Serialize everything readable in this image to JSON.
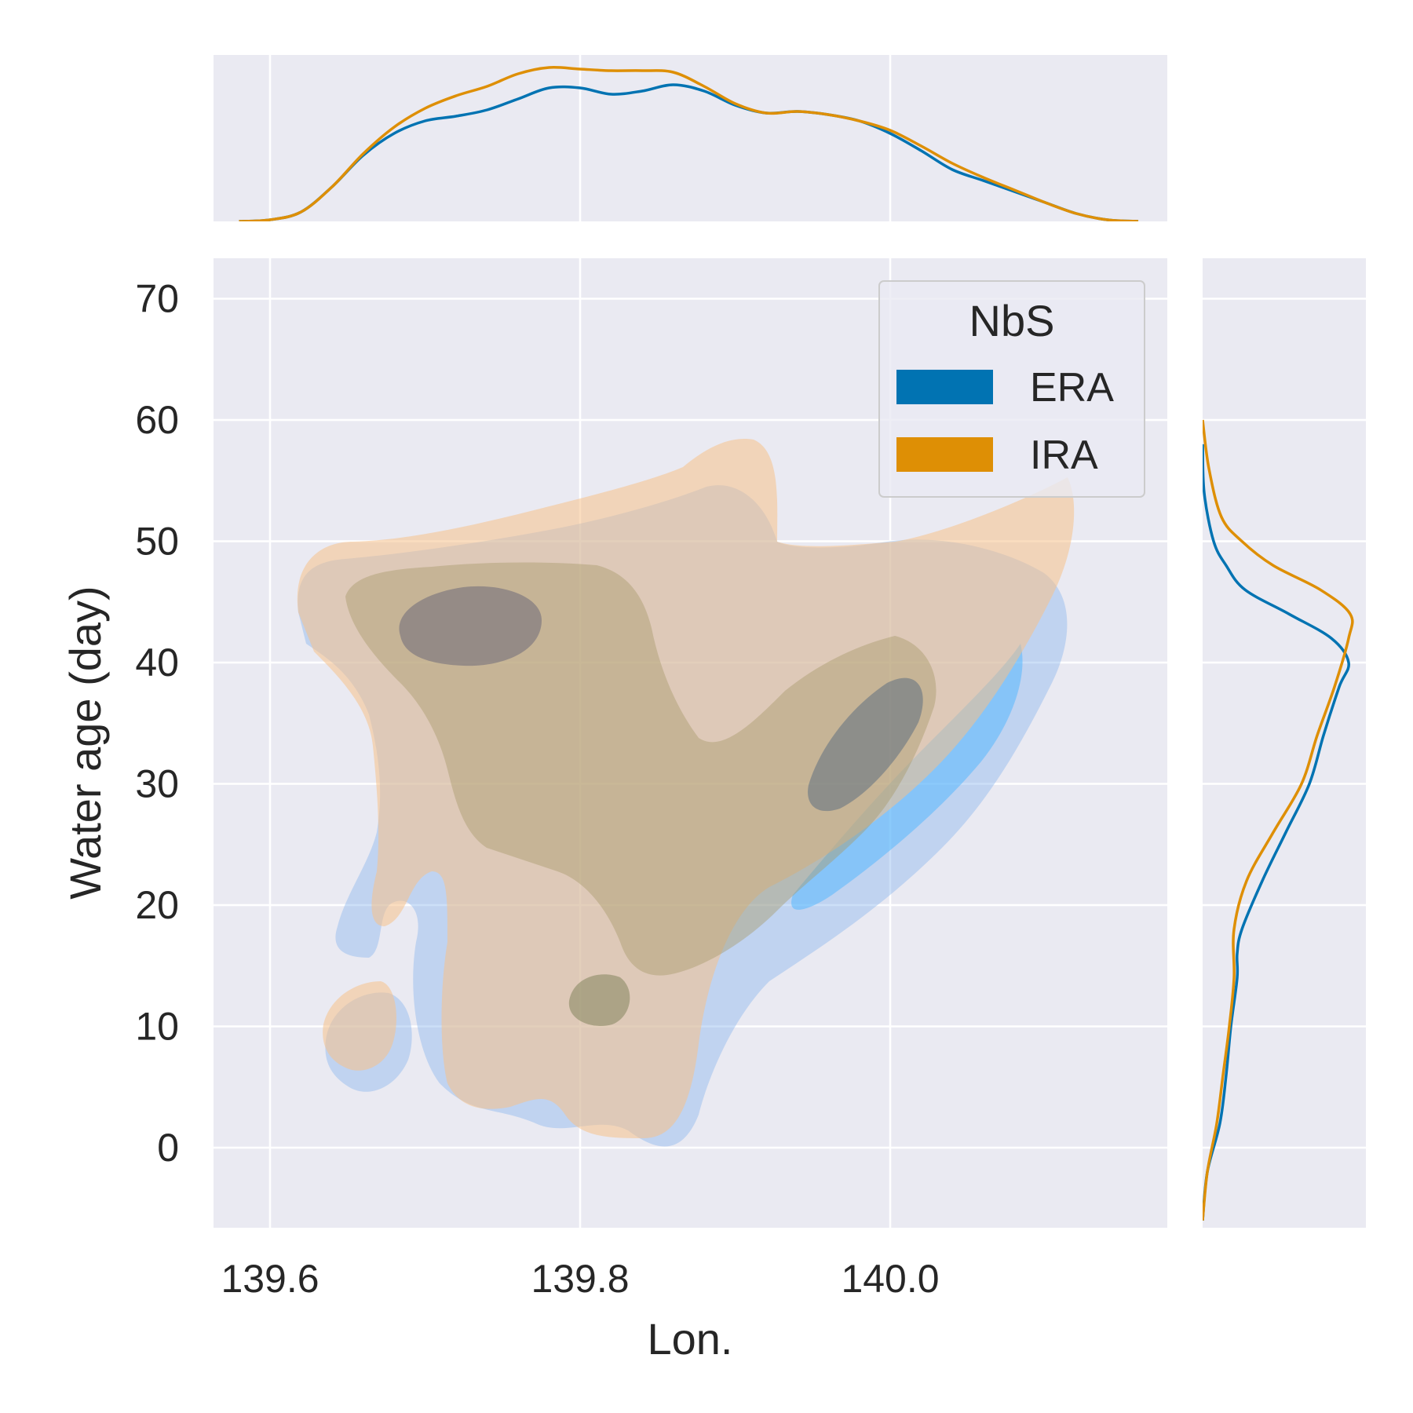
{
  "chart_data": {
    "type": "kde_joint",
    "xlabel": "Lon.",
    "ylabel": "Water age (day)",
    "x_ticks": [
      139.6,
      139.8,
      140.0
    ],
    "x_tick_labels": [
      "139.6",
      "139.8",
      "140.0"
    ],
    "y_ticks": [
      0,
      10,
      20,
      30,
      40,
      50,
      60,
      70
    ],
    "y_tick_labels": [
      "0",
      "10",
      "20",
      "30",
      "40",
      "50",
      "60",
      "70"
    ],
    "xlim": [
      139.563,
      140.177
    ],
    "ylim": [
      -6.6,
      73.4
    ],
    "legend": {
      "title": "NbS",
      "placement": "upper right",
      "entries": [
        {
          "label": "ERA",
          "color": "#0173b2"
        },
        {
          "label": "IRA",
          "color": "#de8f05"
        }
      ]
    },
    "grid": true,
    "colors": {
      "ERA": "#0173b2",
      "IRA": "#de8f05",
      "ERA_fill_light": "#8fb8ee",
      "ERA_fill_core": "#55b8ff",
      "IRA_fill_light": "#f5c18a",
      "panel_bg": "#eaeaf2",
      "grid": "#ffffff"
    },
    "series": [
      {
        "name": "ERA",
        "kde_x_marginal": [
          [
            139.58,
            0.0
          ],
          [
            139.6,
            0.01
          ],
          [
            139.62,
            0.06
          ],
          [
            139.64,
            0.22
          ],
          [
            139.66,
            0.42
          ],
          [
            139.68,
            0.56
          ],
          [
            139.7,
            0.64
          ],
          [
            139.72,
            0.67
          ],
          [
            139.74,
            0.71
          ],
          [
            139.76,
            0.78
          ],
          [
            139.78,
            0.85
          ],
          [
            139.8,
            0.85
          ],
          [
            139.82,
            0.81
          ],
          [
            139.84,
            0.83
          ],
          [
            139.86,
            0.87
          ],
          [
            139.88,
            0.83
          ],
          [
            139.9,
            0.74
          ],
          [
            139.92,
            0.69
          ],
          [
            139.94,
            0.7
          ],
          [
            139.96,
            0.68
          ],
          [
            139.98,
            0.64
          ],
          [
            140.0,
            0.56
          ],
          [
            140.02,
            0.45
          ],
          [
            140.04,
            0.33
          ],
          [
            140.06,
            0.26
          ],
          [
            140.08,
            0.19
          ],
          [
            140.1,
            0.12
          ],
          [
            140.12,
            0.05
          ],
          [
            140.14,
            0.01
          ],
          [
            140.16,
            0.0
          ]
        ],
        "kde_y_marginal": [
          [
            -6,
            0.0
          ],
          [
            -2,
            0.03
          ],
          [
            2,
            0.11
          ],
          [
            6,
            0.15
          ],
          [
            10,
            0.18
          ],
          [
            14,
            0.22
          ],
          [
            16,
            0.22
          ],
          [
            18,
            0.25
          ],
          [
            22,
            0.38
          ],
          [
            26,
            0.53
          ],
          [
            30,
            0.68
          ],
          [
            34,
            0.77
          ],
          [
            38,
            0.87
          ],
          [
            40,
            0.93
          ],
          [
            42,
            0.82
          ],
          [
            44,
            0.55
          ],
          [
            46,
            0.27
          ],
          [
            48,
            0.15
          ],
          [
            50,
            0.07
          ],
          [
            54,
            0.01
          ],
          [
            58,
            0.0
          ]
        ]
      },
      {
        "name": "IRA",
        "kde_x_marginal": [
          [
            139.58,
            0.0
          ],
          [
            139.6,
            0.01
          ],
          [
            139.62,
            0.06
          ],
          [
            139.64,
            0.22
          ],
          [
            139.66,
            0.43
          ],
          [
            139.68,
            0.6
          ],
          [
            139.7,
            0.72
          ],
          [
            139.72,
            0.8
          ],
          [
            139.74,
            0.86
          ],
          [
            139.76,
            0.94
          ],
          [
            139.78,
            0.98
          ],
          [
            139.8,
            0.97
          ],
          [
            139.82,
            0.96
          ],
          [
            139.84,
            0.96
          ],
          [
            139.86,
            0.95
          ],
          [
            139.88,
            0.86
          ],
          [
            139.9,
            0.75
          ],
          [
            139.92,
            0.69
          ],
          [
            139.94,
            0.7
          ],
          [
            139.96,
            0.68
          ],
          [
            139.98,
            0.64
          ],
          [
            140.0,
            0.58
          ],
          [
            140.02,
            0.48
          ],
          [
            140.04,
            0.37
          ],
          [
            140.06,
            0.28
          ],
          [
            140.08,
            0.2
          ],
          [
            140.1,
            0.12
          ],
          [
            140.12,
            0.05
          ],
          [
            140.14,
            0.01
          ],
          [
            140.16,
            0.0
          ]
        ],
        "kde_y_marginal": [
          [
            -6,
            0.0
          ],
          [
            -2,
            0.03
          ],
          [
            2,
            0.09
          ],
          [
            6,
            0.13
          ],
          [
            10,
            0.17
          ],
          [
            14,
            0.2
          ],
          [
            18,
            0.2
          ],
          [
            22,
            0.28
          ],
          [
            26,
            0.45
          ],
          [
            30,
            0.63
          ],
          [
            34,
            0.73
          ],
          [
            38,
            0.84
          ],
          [
            42,
            0.93
          ],
          [
            44,
            0.94
          ],
          [
            46,
            0.75
          ],
          [
            48,
            0.45
          ],
          [
            50,
            0.25
          ],
          [
            52,
            0.12
          ],
          [
            56,
            0.04
          ],
          [
            60,
            0.0
          ]
        ]
      }
    ]
  }
}
